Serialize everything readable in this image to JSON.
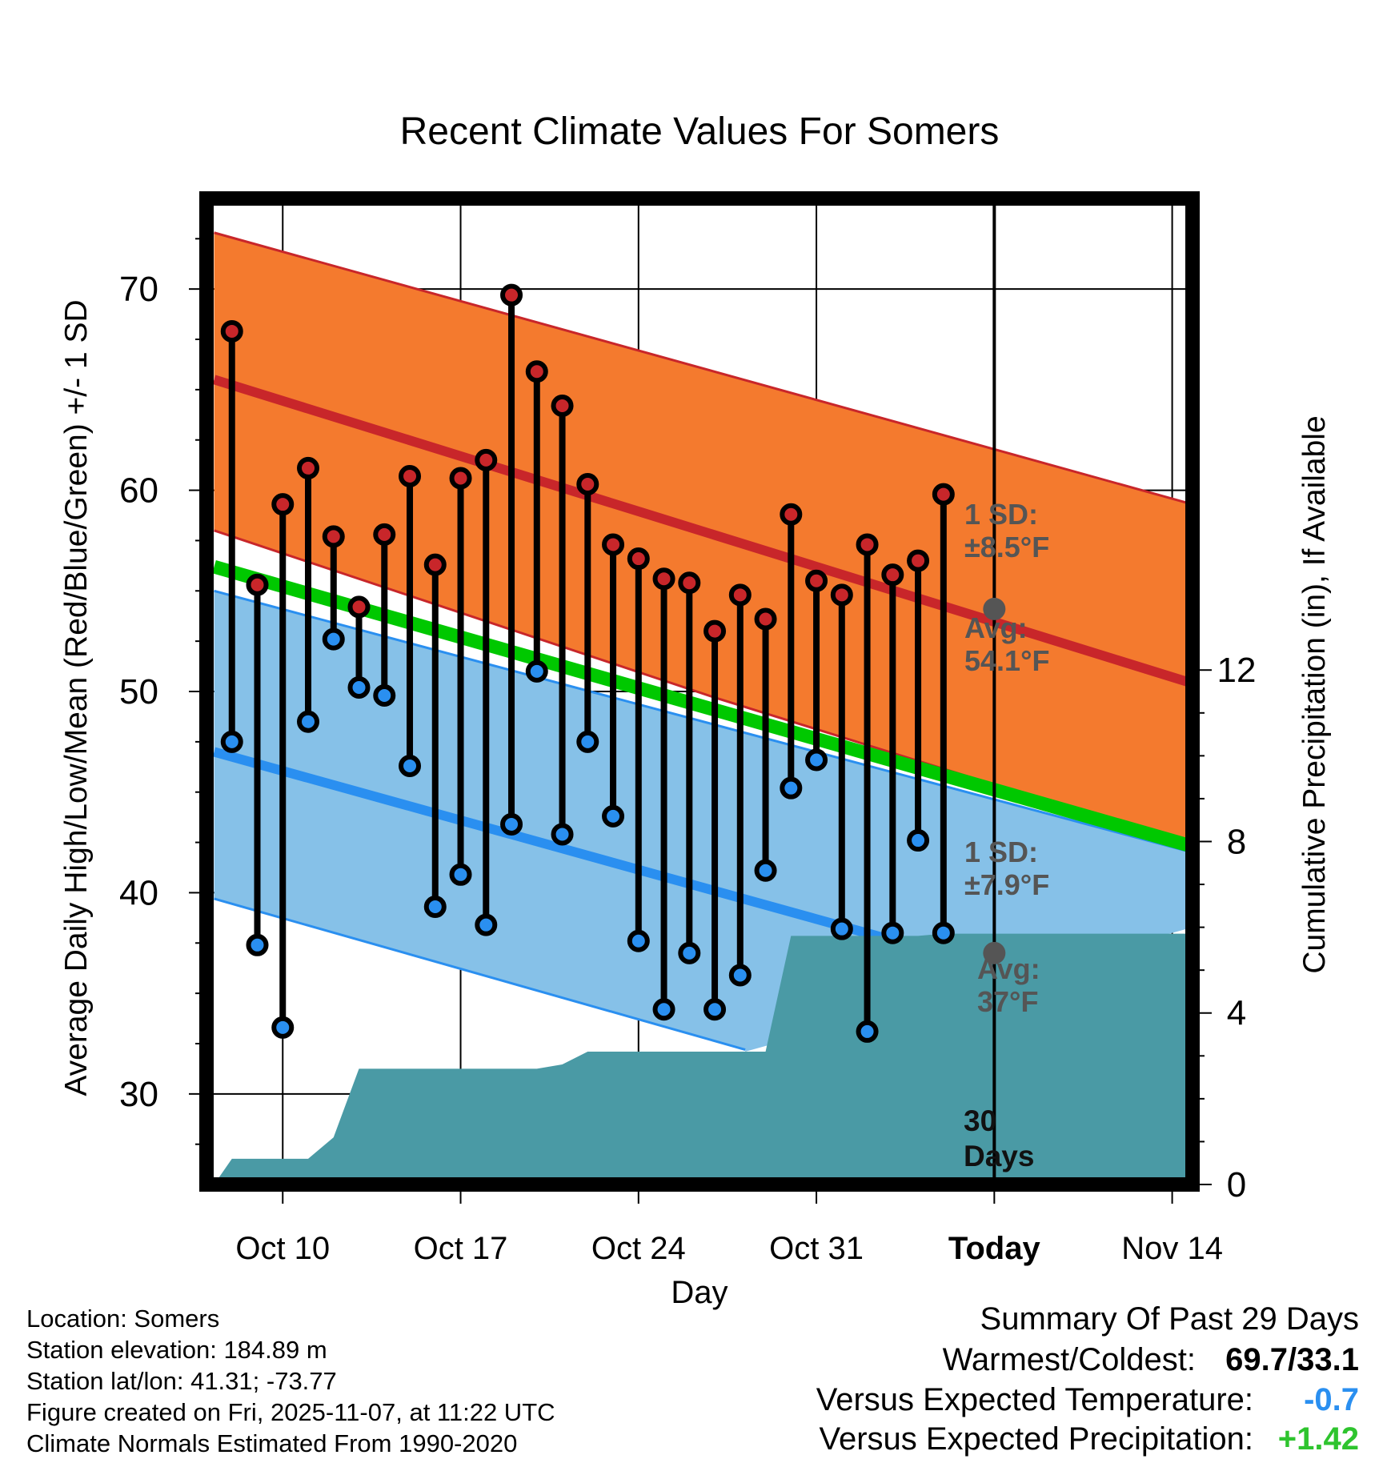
{
  "chart_data": {
    "type": "line",
    "title": "Recent Climate Values For Somers",
    "xlabel": "Day",
    "ylabel": "Average Daily High/Low/Mean (Red/Blue/Green) +/- 1 SD",
    "y2label": "Cumulative Precipitation (in), If Available",
    "ylim": [
      25.5,
      74.5
    ],
    "y2lim": [
      0,
      23
    ],
    "xlim": [
      7,
      45.8
    ],
    "yticks": [
      30,
      40,
      50,
      60,
      70
    ],
    "y2ticks": [
      0,
      4,
      8,
      12
    ],
    "xticks": [
      {
        "x": 10,
        "label": "Oct 10"
      },
      {
        "x": 17,
        "label": "Oct 17"
      },
      {
        "x": 24,
        "label": "Oct 24"
      },
      {
        "x": 31,
        "label": "Oct 31"
      },
      {
        "x": 38,
        "label": "Today"
      },
      {
        "x": 45,
        "label": "Nov 14"
      }
    ],
    "today_x": 38,
    "normals": {
      "high_avg": {
        "x": [
          7.3,
          45.8
        ],
        "y": [
          65.5,
          50.4
        ]
      },
      "high_upper": {
        "x": [
          7.3,
          45.8
        ],
        "y": [
          72.8,
          59.3
        ]
      },
      "high_lower": {
        "x": [
          7.3,
          27,
          45.8
        ],
        "y": [
          58.0,
          49.7,
          42.3
        ]
      },
      "low_avg": {
        "x": [
          7.3,
          45.8
        ],
        "y": [
          47.0,
          33.5
        ]
      },
      "low_upper": {
        "x": [
          7.3,
          45.8
        ],
        "y": [
          55.0,
          42.0
        ]
      },
      "low_lower": {
        "x": [
          7.3,
          28.2
        ],
        "y": [
          39.7,
          32.2
        ]
      },
      "mean": {
        "x": [
          7.3,
          45.8
        ],
        "y": [
          56.2,
          42.3
        ]
      }
    },
    "series": [
      {
        "name": "Daily High",
        "color": "#c8262a",
        "x": [
          8,
          9,
          10,
          11,
          12,
          13,
          14,
          15,
          16,
          17,
          18,
          19,
          20,
          21,
          22,
          23,
          24,
          25,
          26,
          27,
          28,
          29,
          30,
          31,
          32,
          33,
          34,
          35,
          36
        ],
        "values": [
          67.9,
          55.3,
          59.3,
          61.1,
          57.7,
          54.2,
          57.8,
          60.7,
          56.3,
          60.6,
          61.5,
          69.7,
          65.9,
          64.2,
          60.3,
          57.3,
          56.6,
          55.6,
          55.4,
          53.0,
          54.8,
          53.6,
          58.8,
          55.5,
          54.8,
          57.3,
          55.8,
          56.5,
          59.8
        ]
      },
      {
        "name": "Daily Low",
        "color": "#2a8ff0",
        "x": [
          8,
          9,
          10,
          11,
          12,
          13,
          14,
          15,
          16,
          17,
          18,
          19,
          20,
          21,
          22,
          23,
          24,
          25,
          26,
          27,
          28,
          29,
          30,
          31,
          32,
          33,
          34,
          35,
          36
        ],
        "values": [
          47.5,
          37.4,
          33.3,
          48.5,
          52.6,
          50.2,
          49.8,
          46.3,
          39.3,
          40.9,
          38.4,
          43.4,
          51.0,
          42.9,
          47.5,
          43.8,
          37.6,
          34.2,
          37.0,
          34.2,
          35.9,
          41.1,
          45.2,
          46.6,
          38.2,
          33.1,
          38.0,
          42.6,
          38.0
        ]
      },
      {
        "name": "Cumulative Precipitation",
        "color": "#4a9aa5",
        "x": [
          7.3,
          8,
          10,
          11,
          12,
          13,
          14,
          15,
          16,
          17,
          18,
          19,
          20,
          21,
          22,
          23,
          24,
          25,
          26,
          27,
          28,
          29,
          30,
          31,
          32,
          33,
          34,
          35,
          36,
          37,
          38,
          45.8
        ],
        "values": [
          0,
          0.6,
          0.6,
          0.6,
          1.1,
          2.7,
          2.7,
          2.7,
          2.7,
          2.7,
          2.7,
          2.7,
          2.7,
          2.8,
          3.1,
          3.1,
          3.1,
          3.1,
          3.1,
          3.1,
          3.1,
          3.1,
          5.8,
          5.8,
          5.8,
          5.8,
          5.8,
          5.8,
          5.85,
          5.85,
          5.85,
          5.85
        ]
      }
    ],
    "annotations": {
      "high_sd_label": "1 SD:",
      "high_sd_value": "±8.5°F",
      "high_avg_label": "Avg:",
      "high_avg_value": "54.1°F",
      "high_avg_point": 54.1,
      "low_sd_label": "1 SD:",
      "low_sd_value": "±7.9°F",
      "low_avg_label": "Avg:",
      "low_avg_value": "37°F",
      "low_avg_point": 37,
      "days_number": "30",
      "days_label": "Days"
    }
  },
  "station": {
    "location": "Location: Somers",
    "elevation": "Station elevation: 184.89 m",
    "latlon": "Station lat/lon: 41.31; -73.77",
    "created": "Figure created on Fri, 2025-11-07, at 11:22 UTC",
    "normals": "Climate Normals Estimated From 1990-2020"
  },
  "summary": {
    "title": "Summary Of Past 29 Days",
    "warm_cold_label": "Warmest/Coldest:",
    "warm_cold_value": "69.7/33.1",
    "temp_label": "Versus Expected Temperature:",
    "temp_value": "-0.7",
    "temp_color": "#2a8ff0",
    "precip_label": "Versus Expected Precipitation:",
    "precip_value": "+1.42",
    "precip_color": "#2ec42e"
  },
  "colors": {
    "high_band": "#f47a2e",
    "high_line": "#c8262a",
    "low_band": "#86c1e8",
    "low_line": "#2a8ff0",
    "mean_line": "#00c800",
    "precip": "#4a9aa5",
    "avg_marker": "#555555"
  }
}
